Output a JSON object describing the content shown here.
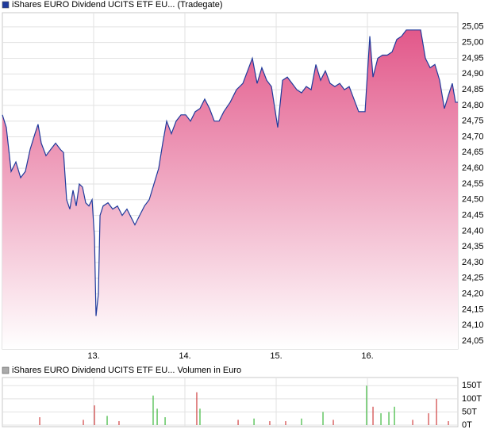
{
  "chart_data": [
    {
      "type": "line",
      "legend": "iShares EURO Dividend UCITS ETF EU... (Tradegate)",
      "x": [
        12.0,
        12.043,
        12.096,
        12.148,
        12.2,
        12.252,
        12.304,
        12.357,
        12.391,
        12.426,
        12.478,
        12.53,
        12.583,
        12.635,
        12.67,
        12.704,
        12.739,
        12.774,
        12.809,
        12.843,
        12.878,
        12.913,
        12.948,
        12.983,
        13.009,
        13.026,
        13.052,
        13.07,
        13.104,
        13.157,
        13.209,
        13.261,
        13.313,
        13.365,
        13.417,
        13.452,
        13.504,
        13.557,
        13.609,
        13.661,
        13.713,
        13.757,
        13.8,
        13.852,
        13.904,
        13.957,
        14.009,
        14.061,
        14.113,
        14.165,
        14.217,
        14.27,
        14.322,
        14.374,
        14.426,
        14.496,
        14.565,
        14.635,
        14.687,
        14.739,
        14.791,
        14.843,
        14.896,
        14.948,
        15.017,
        15.07,
        15.122,
        15.174,
        15.226,
        15.278,
        15.33,
        15.383,
        15.435,
        15.487,
        15.539,
        15.591,
        15.643,
        15.696,
        15.748,
        15.8,
        15.852,
        15.904,
        15.974,
        15.991,
        16.026,
        16.061,
        16.113,
        16.165,
        16.217,
        16.27,
        16.322,
        16.374,
        16.426,
        16.478,
        16.53,
        16.583,
        16.635,
        16.687,
        16.739,
        16.791,
        16.843,
        16.896,
        16.93,
        16.965,
        16.991
      ],
      "series": [
        {
          "color": "#1f3a9c",
          "fill": "#e2588a",
          "values": [
            24.77,
            24.73,
            24.59,
            24.62,
            24.57,
            24.59,
            24.66,
            24.71,
            24.74,
            24.68,
            24.64,
            24.66,
            24.68,
            24.66,
            24.65,
            24.5,
            24.47,
            24.53,
            24.48,
            24.55,
            24.54,
            24.49,
            24.48,
            24.5,
            24.38,
            24.13,
            24.2,
            24.45,
            24.48,
            24.49,
            24.47,
            24.48,
            24.45,
            24.47,
            24.44,
            24.42,
            24.45,
            24.48,
            24.5,
            24.55,
            24.6,
            24.68,
            24.75,
            24.71,
            24.75,
            24.77,
            24.77,
            24.75,
            24.78,
            24.79,
            24.82,
            24.79,
            24.75,
            24.75,
            24.78,
            24.81,
            24.85,
            24.87,
            24.91,
            24.95,
            24.87,
            24.92,
            24.88,
            24.86,
            24.73,
            24.88,
            24.89,
            24.87,
            24.85,
            24.84,
            24.86,
            24.85,
            24.93,
            24.88,
            24.91,
            24.87,
            24.86,
            24.87,
            24.85,
            24.86,
            24.82,
            24.78,
            24.78,
            24.86,
            25.02,
            24.89,
            24.95,
            24.96,
            24.96,
            24.97,
            25.01,
            25.02,
            25.04,
            25.04,
            25.04,
            25.04,
            24.95,
            24.92,
            24.93,
            24.88,
            24.79,
            24.84,
            24.87,
            24.81,
            24.81
          ]
        }
      ],
      "xlim": [
        12.0,
        16.991
      ],
      "xticks": [
        {
          "value": 13,
          "label": "13."
        },
        {
          "value": 14,
          "label": "14."
        },
        {
          "value": 15,
          "label": "15."
        },
        {
          "value": 16,
          "label": "16."
        }
      ],
      "ylim": [
        24.025,
        25.095
      ],
      "yticks": [
        {
          "value": 24.05,
          "label": "24,05"
        },
        {
          "value": 24.1,
          "label": "24,10"
        },
        {
          "value": 24.15,
          "label": "24,15"
        },
        {
          "value": 24.2,
          "label": "24,20"
        },
        {
          "value": 24.25,
          "label": "24,25"
        },
        {
          "value": 24.3,
          "label": "24,30"
        },
        {
          "value": 24.35,
          "label": "24,35"
        },
        {
          "value": 24.4,
          "label": "24,40"
        },
        {
          "value": 24.45,
          "label": "24,45"
        },
        {
          "value": 24.5,
          "label": "24,50"
        },
        {
          "value": 24.55,
          "label": "24,55"
        },
        {
          "value": 24.6,
          "label": "24,60"
        },
        {
          "value": 24.65,
          "label": "24,65"
        },
        {
          "value": 24.7,
          "label": "24,70"
        },
        {
          "value": 24.75,
          "label": "24,75"
        },
        {
          "value": 24.8,
          "label": "24,80"
        },
        {
          "value": 24.85,
          "label": "24,85"
        },
        {
          "value": 24.9,
          "label": "24,90"
        },
        {
          "value": 24.95,
          "label": "24,95"
        },
        {
          "value": 25.0,
          "label": "25,00"
        },
        {
          "value": 25.05,
          "label": "25,05"
        }
      ],
      "grid": true,
      "legend_color": "#1f3a9c"
    },
    {
      "type": "bar",
      "legend": "iShares EURO Dividend UCITS ETF EU... Volumen in Euro",
      "x": [
        12.409,
        12.887,
        13.009,
        13.148,
        13.278,
        13.652,
        13.696,
        13.783,
        14.13,
        14.165,
        14.583,
        14.757,
        14.93,
        15.104,
        15.278,
        15.513,
        15.626,
        15.991,
        16.061,
        16.148,
        16.235,
        16.296,
        16.496,
        16.67,
        16.757,
        16.887
      ],
      "values": [
        30000,
        20000,
        75000,
        35000,
        15000,
        112500,
        62500,
        30000,
        125000,
        62500,
        20000,
        25000,
        15000,
        15000,
        25000,
        50000,
        20000,
        150000,
        70000,
        45000,
        50000,
        70000,
        20000,
        45000,
        100000,
        15000
      ],
      "colors": [
        "#d04040",
        "#d04040",
        "#d04040",
        "#3cb83c",
        "#d04040",
        "#3cb83c",
        "#3cb83c",
        "#3cb83c",
        "#d04040",
        "#3cb83c",
        "#d04040",
        "#3cb83c",
        "#d04040",
        "#d04040",
        "#3cb83c",
        "#3cb83c",
        "#d04040",
        "#3cb83c",
        "#d04040",
        "#3cb83c",
        "#3cb83c",
        "#3cb83c",
        "#d04040",
        "#d04040",
        "#d04040",
        "#d04040"
      ],
      "xlim": [
        12.0,
        16.991
      ],
      "xticks": [
        13,
        14,
        15,
        16
      ],
      "ylim": [
        0,
        175000
      ],
      "yticks": [
        {
          "value": 0,
          "label": "0T"
        },
        {
          "value": 50000,
          "label": "50T"
        },
        {
          "value": 100000,
          "label": "100T"
        },
        {
          "value": 150000,
          "label": "150T"
        }
      ],
      "grid": true,
      "legend_color": "#aaaaaa"
    }
  ]
}
